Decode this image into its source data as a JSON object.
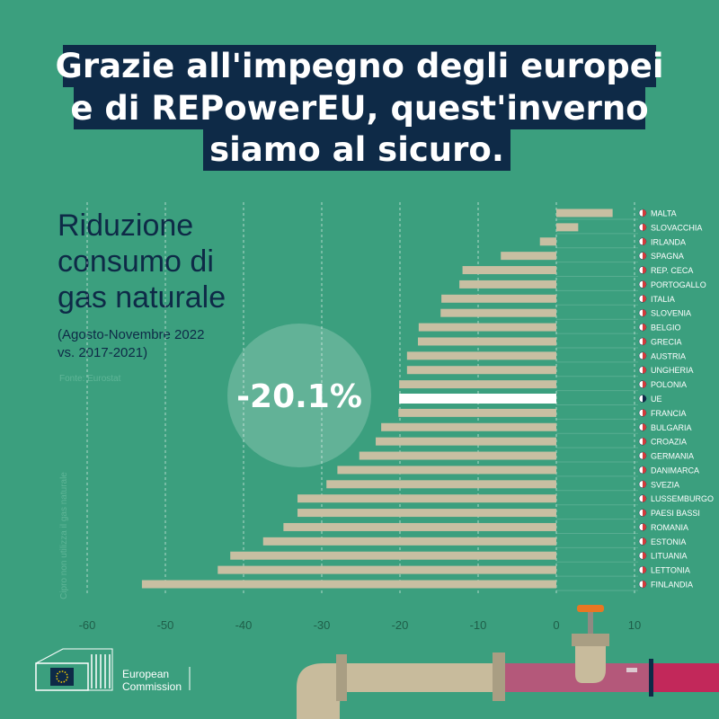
{
  "headline": [
    "Grazie all'impegno degli europei",
    "e di REPowerEU, quest'inverno",
    "siamo al sicuro."
  ],
  "logo": [
    "European",
    "Commission"
  ],
  "chart_data": {
    "type": "hbar",
    "title": [
      "Riduzione",
      "consumo di",
      "gas naturale"
    ],
    "subtitle": [
      "(Agosto-Novembre  2022",
      "vs. 2017-2021)"
    ],
    "source": "Fonte: Eurostat",
    "note": "Cipro non utilizza il gas naturale",
    "categories": [
      "MALTA",
      "SLOVACCHIA",
      "IRLANDA",
      "SPAGNA",
      "REP. CECA",
      "PORTOGALLO",
      "ITALIA",
      "SLOVENIA",
      "BELGIO",
      "GRECIA",
      "AUSTRIA",
      "UNGHERIA",
      "POLONIA",
      "UE",
      "FRANCIA",
      "BULGARIA",
      "CROAZIA",
      "GERMANIA",
      "DANIMARCA",
      "SVEZIA",
      "LUSSEMBURGO",
      "PAESI BASSI",
      "ROMANIA",
      "ESTONIA",
      "LITUANIA",
      "LETTONIA",
      "FINLANDIA"
    ],
    "values": [
      7.2,
      2.8,
      -2.1,
      -7.1,
      -12.0,
      -12.4,
      -14.7,
      -14.8,
      -17.6,
      -17.7,
      -19.1,
      -19.1,
      -20.1,
      -20.1,
      -20.2,
      -22.4,
      -23.1,
      -25.2,
      -28.0,
      -29.4,
      -33.1,
      -33.1,
      -34.9,
      -37.5,
      -41.7,
      -43.3,
      -53.0
    ],
    "value_labels": [
      null,
      null,
      null,
      null,
      null,
      null,
      null,
      null,
      null,
      null,
      null,
      null,
      null,
      "-20.1%",
      null,
      null,
      null,
      null,
      null,
      null,
      null,
      null,
      null,
      null,
      null,
      null,
      null
    ],
    "color": "#c8bfa2",
    "highlight_color": "#ffffff",
    "highlight": "UE",
    "xlim": [
      -60,
      10
    ],
    "xticks": [
      -60,
      -50,
      -40,
      -30,
      -20,
      -10,
      0,
      10
    ],
    "grid": true
  }
}
